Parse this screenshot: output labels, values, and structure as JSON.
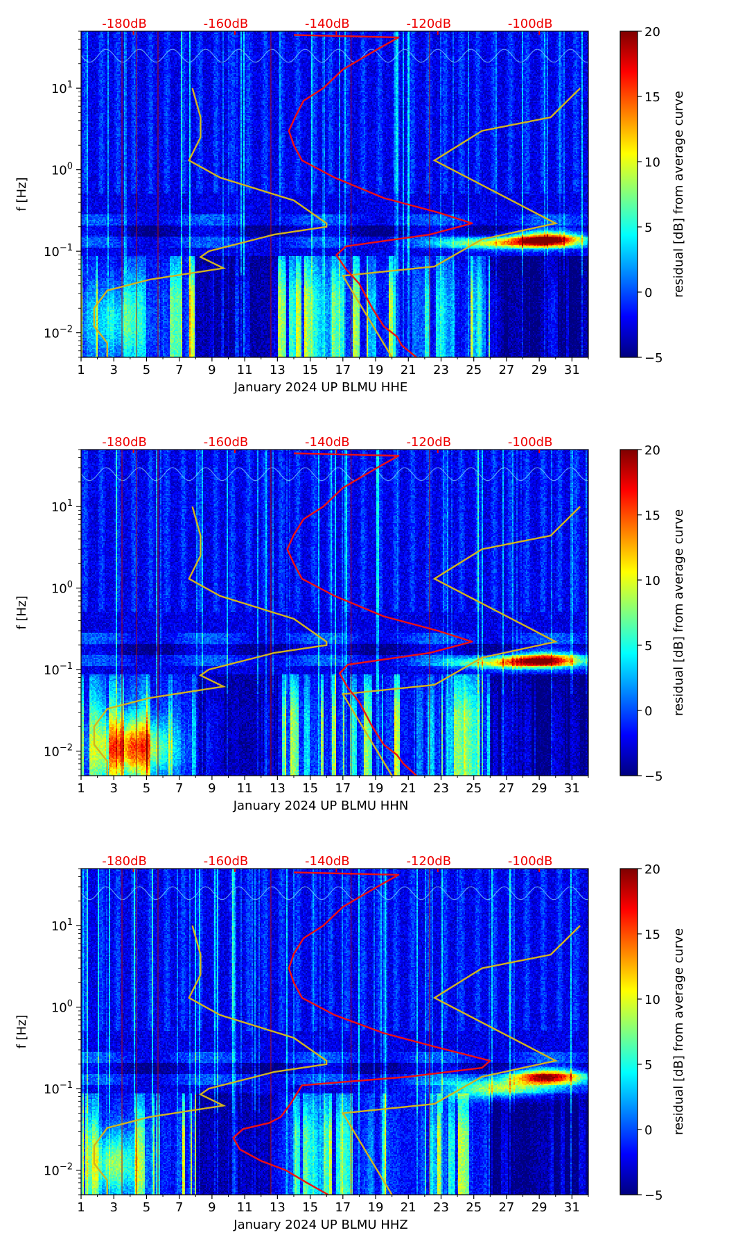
{
  "chart_data": {
    "type": "heatmap",
    "title": "",
    "colorbar": {
      "label": "residual [dB] from average curve",
      "min": -5,
      "max": 20,
      "ticks": [
        "20",
        "15",
        "10",
        "5",
        "0",
        "−5"
      ],
      "tick_values": [
        20,
        15,
        10,
        5,
        0,
        -5
      ]
    },
    "ylabel": "f [Hz]",
    "y_scale": "log",
    "ylim": [
      0.005,
      50
    ],
    "y_ticks": [
      {
        "value": 0.01,
        "base": "10",
        "exp": "−2"
      },
      {
        "value": 0.1,
        "base": "10",
        "exp": "−1"
      },
      {
        "value": 1,
        "base": "10",
        "exp": "0"
      },
      {
        "value": 10,
        "base": "10",
        "exp": "1"
      }
    ],
    "xlim": [
      1,
      32
    ],
    "x_ticks": [
      "1",
      "3",
      "5",
      "7",
      "9",
      "11",
      "13",
      "15",
      "17",
      "19",
      "21",
      "23",
      "25",
      "27",
      "29",
      "31"
    ],
    "x_tick_values": [
      1,
      3,
      5,
      7,
      9,
      11,
      13,
      15,
      17,
      19,
      21,
      23,
      25,
      27,
      29,
      31
    ],
    "top_axis_labels": [
      "-180dB",
      "-160dB",
      "-140dB",
      "-120dB",
      "-100dB"
    ],
    "top_axis_positions_day": [
      4.2,
      10.4,
      16.6,
      22.8,
      29.0
    ],
    "colors": {
      "average_curve": "#ee1111",
      "noise_model": "#d2b41e",
      "top_labels": "#ee0000",
      "day_markers": "#aa1111"
    },
    "day_marker_lines": [
      3.5,
      4.4,
      5.7,
      12.6,
      17.5,
      22.3
    ],
    "noise_model_curve": [
      [
        2.6,
        0.005
      ],
      [
        2.6,
        0.0075
      ],
      [
        1.8,
        0.012
      ],
      [
        1.8,
        0.02
      ],
      [
        2.6,
        0.033
      ],
      [
        5.2,
        0.045
      ],
      [
        9.7,
        0.062
      ],
      [
        8.3,
        0.085
      ],
      [
        8.8,
        0.1
      ],
      [
        12.8,
        0.16
      ],
      [
        16.0,
        0.2
      ],
      [
        16.0,
        0.22
      ],
      [
        14.0,
        0.42
      ],
      [
        9.5,
        0.8
      ],
      [
        7.6,
        1.3
      ],
      [
        8.3,
        2.5
      ],
      [
        8.3,
        4.4
      ],
      [
        7.8,
        10.0
      ]
    ],
    "noise_model_curve_high": [
      [
        20.0,
        0.005
      ],
      [
        17.0,
        0.05
      ],
      [
        22.6,
        0.065
      ],
      [
        25.5,
        0.14
      ],
      [
        30.0,
        0.22
      ],
      [
        22.6,
        1.3
      ],
      [
        25.5,
        3.0
      ],
      [
        29.7,
        4.4
      ],
      [
        31.5,
        10.0
      ]
    ],
    "panels": [
      {
        "xlabel": "January 2024 UP BLMU  HHE",
        "channel": "HHE",
        "average_curve": [
          [
            21.5,
            0.005
          ],
          [
            20.6,
            0.007
          ],
          [
            20.3,
            0.009
          ],
          [
            19.5,
            0.012
          ],
          [
            18.8,
            0.02
          ],
          [
            18.0,
            0.04
          ],
          [
            17.2,
            0.06
          ],
          [
            16.6,
            0.09
          ],
          [
            17.2,
            0.115
          ],
          [
            22.3,
            0.16
          ],
          [
            24.9,
            0.22
          ],
          [
            22.8,
            0.3
          ],
          [
            19.5,
            0.45
          ],
          [
            16.5,
            0.8
          ],
          [
            14.5,
            1.3
          ],
          [
            14.0,
            2.0
          ],
          [
            13.7,
            3.0
          ],
          [
            14.1,
            4.5
          ],
          [
            14.6,
            7.0
          ],
          [
            15.8,
            10.0
          ],
          [
            17.0,
            17.0
          ],
          [
            19.1,
            30.0
          ],
          [
            20.4,
            42.0
          ],
          [
            14.0,
            45.0
          ]
        ],
        "hot_spots": [
          {
            "day": 29.5,
            "freq": 0.14,
            "spread_day": 2.2,
            "spread_logf": 0.09,
            "amp": 20
          },
          {
            "day": 26.5,
            "freq": 0.125,
            "spread_day": 3.2,
            "spread_logf": 0.07,
            "amp": 12
          },
          {
            "day": 3.0,
            "freq": 0.014,
            "spread_day": 1.8,
            "spread_logf": 0.45,
            "amp": 6
          }
        ]
      },
      {
        "xlabel": "January 2024 UP BLMU  HHN",
        "channel": "HHN",
        "average_curve": [
          [
            21.5,
            0.005
          ],
          [
            20.7,
            0.007
          ],
          [
            20.3,
            0.009
          ],
          [
            19.5,
            0.012
          ],
          [
            18.8,
            0.02
          ],
          [
            18.0,
            0.04
          ],
          [
            17.3,
            0.06
          ],
          [
            16.8,
            0.09
          ],
          [
            17.3,
            0.115
          ],
          [
            22.3,
            0.16
          ],
          [
            24.9,
            0.22
          ],
          [
            22.8,
            0.3
          ],
          [
            19.5,
            0.45
          ],
          [
            16.5,
            0.8
          ],
          [
            14.5,
            1.3
          ],
          [
            14.0,
            2.0
          ],
          [
            13.6,
            3.0
          ],
          [
            14.0,
            4.5
          ],
          [
            14.6,
            7.0
          ],
          [
            15.8,
            10.0
          ],
          [
            17.0,
            17.0
          ],
          [
            19.1,
            30.0
          ],
          [
            20.4,
            42.0
          ],
          [
            14.0,
            45.0
          ]
        ],
        "hot_spots": [
          {
            "day": 29.3,
            "freq": 0.13,
            "spread_day": 2.3,
            "spread_logf": 0.09,
            "amp": 18
          },
          {
            "day": 26.5,
            "freq": 0.12,
            "spread_day": 3.0,
            "spread_logf": 0.07,
            "amp": 11
          },
          {
            "day": 4.2,
            "freq": 0.011,
            "spread_day": 2.2,
            "spread_logf": 0.35,
            "amp": 14
          }
        ]
      },
      {
        "xlabel": "January 2024 UP BLMU  HHZ",
        "channel": "HHZ",
        "average_curve": [
          [
            16.1,
            0.005
          ],
          [
            14.8,
            0.007
          ],
          [
            13.5,
            0.01
          ],
          [
            12.0,
            0.013
          ],
          [
            10.7,
            0.018
          ],
          [
            10.3,
            0.025
          ],
          [
            10.9,
            0.032
          ],
          [
            12.5,
            0.038
          ],
          [
            13.2,
            0.045
          ],
          [
            13.8,
            0.065
          ],
          [
            14.5,
            0.11
          ],
          [
            21.0,
            0.14
          ],
          [
            25.5,
            0.18
          ],
          [
            26.0,
            0.22
          ],
          [
            22.8,
            0.32
          ],
          [
            19.5,
            0.48
          ],
          [
            16.5,
            0.8
          ],
          [
            14.5,
            1.3
          ],
          [
            14.0,
            2.0
          ],
          [
            13.7,
            3.0
          ],
          [
            14.0,
            4.5
          ],
          [
            14.6,
            7.0
          ],
          [
            15.8,
            10.0
          ],
          [
            17.0,
            17.0
          ],
          [
            19.1,
            30.0
          ],
          [
            20.4,
            42.0
          ],
          [
            14.0,
            45.0
          ]
        ],
        "hot_spots": [
          {
            "day": 29.5,
            "freq": 0.14,
            "spread_day": 2.2,
            "spread_logf": 0.09,
            "amp": 19
          },
          {
            "day": 26.5,
            "freq": 0.1,
            "spread_day": 3.5,
            "spread_logf": 0.12,
            "amp": 11
          },
          {
            "day": 3.0,
            "freq": 0.012,
            "spread_day": 1.5,
            "spread_logf": 0.4,
            "amp": 9
          }
        ]
      }
    ]
  }
}
